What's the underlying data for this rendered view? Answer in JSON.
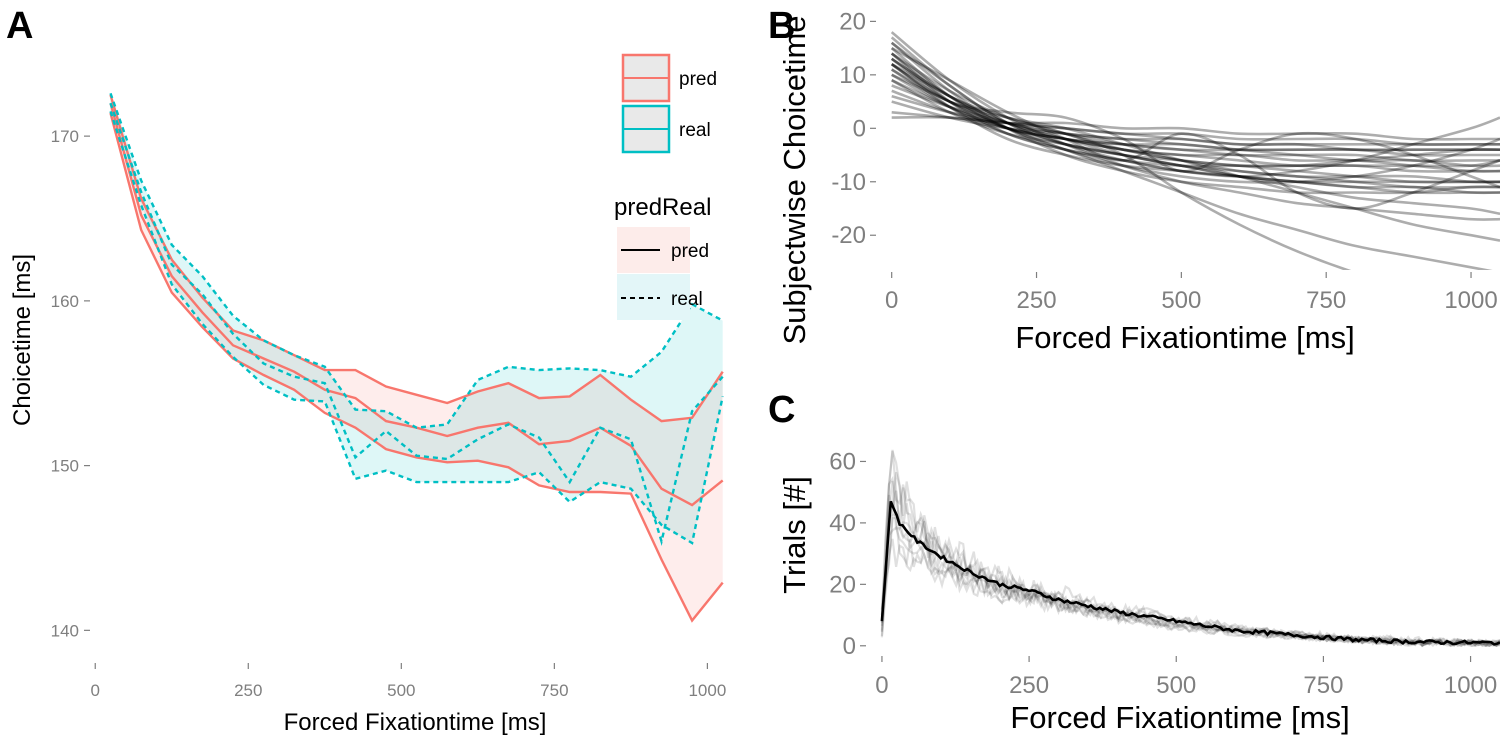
{
  "colors": {
    "pred": "#F8766D",
    "real": "#00BFC4",
    "black": "#000000",
    "tick": "#7f7f7f"
  },
  "chart_data": [
    {
      "panel": "A",
      "type": "line",
      "xlabel": "Forced Fixationtime [ms]",
      "ylabel": "Choicetime [ms]",
      "xlim": [
        -20,
        1050
      ],
      "ylim": [
        138.2,
        174.5
      ],
      "xticks": [
        0,
        250,
        500,
        750,
        1000
      ],
      "yticks": [
        140,
        150,
        160,
        170
      ],
      "legend": {
        "fill_entries": [
          "pred",
          "real"
        ],
        "linetype_title": "predReal",
        "linetype_entries": [
          "pred",
          "real"
        ],
        "position": "top-right"
      },
      "x": [
        25,
        75,
        125,
        175,
        225,
        275,
        325,
        375,
        425,
        475,
        525,
        575,
        625,
        675,
        725,
        775,
        825,
        875,
        925,
        975,
        1025
      ],
      "series": [
        {
          "name": "pred",
          "role": "upper",
          "values": [
            172.5,
            166.2,
            162.5,
            160.2,
            158.2,
            157.6,
            156.7,
            155.8,
            155.8,
            154.8,
            154.3,
            153.8,
            154.5,
            155.0,
            154.1,
            154.2,
            155.5,
            154.0,
            152.7,
            152.9,
            155.7
          ]
        },
        {
          "name": "pred",
          "role": "mean",
          "values": [
            172.0,
            165.2,
            161.5,
            159.3,
            157.3,
            156.5,
            155.7,
            154.6,
            154.1,
            152.7,
            152.3,
            151.8,
            152.3,
            152.6,
            151.3,
            151.5,
            152.3,
            151.2,
            148.6,
            147.6,
            149.1
          ]
        },
        {
          "name": "pred",
          "role": "lower",
          "values": [
            171.4,
            164.3,
            160.5,
            158.4,
            156.5,
            155.5,
            154.6,
            153.2,
            152.3,
            151.0,
            150.5,
            150.2,
            150.3,
            149.9,
            148.8,
            148.4,
            148.4,
            148.3,
            144.3,
            140.6,
            142.9
          ]
        },
        {
          "name": "real",
          "role": "upper",
          "values": [
            172.6,
            167.3,
            163.4,
            161.5,
            159.1,
            157.6,
            156.7,
            156.0,
            153.4,
            153.3,
            152.3,
            152.5,
            155.2,
            156.0,
            155.8,
            155.9,
            155.8,
            155.4,
            156.9,
            159.8,
            158.8
          ]
        },
        {
          "name": "real",
          "role": "mean",
          "values": [
            172.0,
            166.6,
            162.2,
            160.4,
            158.0,
            156.2,
            155.4,
            155.0,
            150.5,
            152.1,
            150.6,
            150.4,
            151.6,
            152.5,
            151.7,
            149.0,
            152.3,
            151.6,
            145.4,
            153.3,
            155.4
          ]
        },
        {
          "name": "real",
          "role": "lower",
          "values": [
            171.5,
            165.8,
            161.0,
            158.6,
            156.6,
            154.9,
            154.0,
            153.9,
            149.2,
            149.7,
            149.0,
            149.0,
            149.0,
            149.0,
            149.6,
            147.8,
            149.0,
            148.6,
            146.4,
            145.3,
            154.2
          ]
        }
      ]
    },
    {
      "panel": "B",
      "type": "line",
      "xlabel": "Forced Fixationtime [ms]",
      "ylabel": "Subjectwise Choicetime",
      "xlim": [
        -15,
        1050
      ],
      "ylim": [
        -28,
        24
      ],
      "xticks": [
        0,
        250,
        500,
        750,
        1000
      ],
      "yticks": [
        -20,
        -10,
        0,
        10,
        20
      ],
      "x": [
        0,
        100,
        200,
        300,
        400,
        500,
        600,
        700,
        800,
        900,
        1000,
        1050
      ],
      "series": [
        {
          "values": [
            18,
            9,
            2,
            -3,
            -7,
            -10,
            -12,
            -14,
            -15,
            -16,
            -17,
            -17
          ]
        },
        {
          "values": [
            16,
            8,
            1,
            -3,
            -5,
            -7,
            -8,
            -9,
            -9,
            -9,
            -10,
            -10
          ]
        },
        {
          "values": [
            15,
            6,
            0,
            -2,
            -4,
            -5,
            -6,
            -7,
            -7,
            -8,
            -8,
            -8
          ]
        },
        {
          "values": [
            14,
            7,
            2,
            -1,
            -4,
            -6,
            -8,
            -9,
            -10,
            -11,
            -11,
            -11
          ]
        },
        {
          "values": [
            13,
            5,
            0,
            -3,
            -5,
            -6,
            -7,
            -7,
            -7,
            -7,
            -7,
            -6
          ]
        },
        {
          "values": [
            12,
            5,
            1,
            -2,
            -4,
            -5,
            -5,
            -6,
            -6,
            -7,
            -8,
            -8
          ]
        },
        {
          "values": [
            11,
            4,
            -1,
            -4,
            -6,
            -8,
            -9,
            -10,
            -10,
            -10,
            -10,
            -10
          ]
        },
        {
          "values": [
            12,
            6,
            1,
            -1,
            -3,
            -4,
            -4,
            -4,
            -4,
            -5,
            -5,
            -5
          ]
        },
        {
          "values": [
            10,
            4,
            0,
            -2,
            -3,
            -3,
            -4,
            -4,
            -4,
            -4,
            -4,
            -4
          ]
        },
        {
          "values": [
            9,
            3,
            -1,
            -3,
            -5,
            -7,
            -9,
            -11,
            -13,
            -14,
            -15,
            -16
          ]
        },
        {
          "values": [
            8,
            4,
            1,
            -1,
            -2,
            -3,
            -4,
            -5,
            -6,
            -6,
            -7,
            -7
          ]
        },
        {
          "values": [
            7,
            3,
            0,
            -2,
            -3,
            -4,
            -5,
            -5,
            -5,
            -6,
            -6,
            -6
          ]
        },
        {
          "values": [
            6,
            3,
            1,
            0,
            -1,
            -2,
            -3,
            -3,
            -4,
            -4,
            -4,
            -4
          ]
        },
        {
          "values": [
            5,
            2,
            0,
            -1,
            -2,
            -2,
            -3,
            -3,
            -3,
            -3,
            -3,
            -3
          ]
        },
        {
          "values": [
            3,
            2,
            1,
            0,
            -1,
            -1,
            -2,
            -2,
            -2,
            -3,
            -3,
            -3
          ]
        },
        {
          "values": [
            2,
            2,
            1,
            1,
            0,
            0,
            -1,
            -1,
            -1,
            -2,
            -2,
            -2
          ]
        },
        {
          "values": [
            17,
            8,
            1,
            -3,
            -6,
            -8,
            -9,
            -8,
            -6,
            -3,
            0,
            2
          ]
        },
        {
          "values": [
            14,
            6,
            0,
            -4,
            -7,
            -9,
            -10,
            -10,
            -9,
            -7,
            -4,
            -2
          ]
        },
        {
          "values": [
            12,
            5,
            3,
            2,
            -2,
            -8,
            -4,
            -1,
            -2,
            -5,
            -9,
            -11
          ]
        },
        {
          "values": [
            15,
            9,
            3,
            -2,
            -6,
            -1,
            -5,
            -12,
            -15,
            -12,
            -8,
            -6
          ]
        },
        {
          "values": [
            11,
            5,
            2,
            0,
            -3,
            -6,
            -9,
            -12,
            -15,
            -18,
            -20,
            -21
          ]
        },
        {
          "values": [
            13,
            6,
            2,
            -1,
            -5,
            -12,
            -18,
            -23,
            -27,
            -30,
            -32,
            -33
          ]
        },
        {
          "values": [
            10,
            5,
            0,
            -4,
            -8,
            -12,
            -16,
            -19,
            -22,
            -24,
            -26,
            -27
          ]
        },
        {
          "values": [
            16,
            7,
            0,
            -5,
            -8,
            -10,
            -11,
            -12,
            -12,
            -12,
            -11,
            -11
          ]
        },
        {
          "values": [
            9,
            4,
            0,
            -2,
            -4,
            -6,
            -7,
            -8,
            -9,
            -10,
            -10,
            -10
          ]
        },
        {
          "values": [
            13,
            6,
            1,
            -2,
            -5,
            -7,
            -9,
            -10,
            -11,
            -12,
            -12,
            -12
          ]
        },
        {
          "values": [
            14,
            5,
            -1,
            -4,
            -6,
            -7,
            -7,
            -7,
            -6,
            -5,
            -4,
            -4
          ]
        },
        {
          "values": [
            12,
            4,
            -2,
            -5,
            -7,
            -8,
            -9,
            -10,
            -11,
            -11,
            -12,
            -12
          ]
        }
      ]
    },
    {
      "panel": "C",
      "type": "line",
      "xlabel": "Forced Fixationtime [ms]",
      "ylabel": "Trials [#]",
      "xlim": [
        -5,
        1050
      ],
      "ylim": [
        -3,
        80
      ],
      "xticks": [
        0,
        250,
        500,
        750,
        1000
      ],
      "yticks": [
        0,
        20,
        40,
        60
      ],
      "x": [
        0,
        15,
        30,
        60,
        100,
        150,
        200,
        250,
        300,
        400,
        500,
        600,
        700,
        800,
        900,
        1000,
        1050
      ],
      "series": [
        {
          "name": "mean",
          "values": [
            8,
            47,
            40,
            34,
            29,
            24,
            20,
            18,
            15,
            11,
            8,
            5,
            3.5,
            2,
            1.3,
            1,
            1
          ]
        }
      ],
      "subject_spread": [
        {
          "values": [
            5,
            74,
            52,
            40,
            33,
            27,
            22,
            19,
            16,
            12,
            9,
            6,
            4,
            3,
            2,
            1,
            1
          ]
        },
        {
          "values": [
            10,
            60,
            46,
            37,
            31,
            25,
            21,
            18,
            16,
            11,
            8,
            6,
            4,
            2,
            2,
            1,
            1
          ]
        },
        {
          "values": [
            3,
            52,
            42,
            35,
            28,
            23,
            19,
            17,
            14,
            10,
            7,
            5,
            3,
            2,
            1,
            1,
            0
          ]
        },
        {
          "values": [
            12,
            44,
            38,
            33,
            27,
            22,
            19,
            16,
            14,
            10,
            7,
            5,
            3,
            2,
            1,
            1,
            0
          ]
        },
        {
          "values": [
            6,
            38,
            34,
            30,
            26,
            21,
            17,
            15,
            13,
            9,
            6,
            4,
            3,
            2,
            1,
            1,
            1
          ]
        },
        {
          "values": [
            9,
            30,
            30,
            27,
            24,
            20,
            17,
            15,
            13,
            9,
            6,
            4,
            3,
            2,
            1,
            0,
            0
          ]
        },
        {
          "values": [
            4,
            56,
            48,
            39,
            30,
            25,
            20,
            17,
            15,
            10,
            7,
            5,
            4,
            2,
            1,
            1,
            1
          ]
        },
        {
          "values": [
            7,
            48,
            44,
            36,
            32,
            26,
            22,
            20,
            17,
            12,
            9,
            6,
            4,
            3,
            2,
            1,
            1
          ]
        },
        {
          "values": [
            2,
            40,
            36,
            32,
            27,
            22,
            18,
            16,
            14,
            10,
            7,
            5,
            3,
            2,
            1,
            1,
            0
          ]
        },
        {
          "values": [
            11,
            64,
            50,
            38,
            29,
            23,
            19,
            17,
            15,
            11,
            8,
            5,
            3,
            2,
            1,
            1,
            1
          ]
        }
      ]
    }
  ]
}
